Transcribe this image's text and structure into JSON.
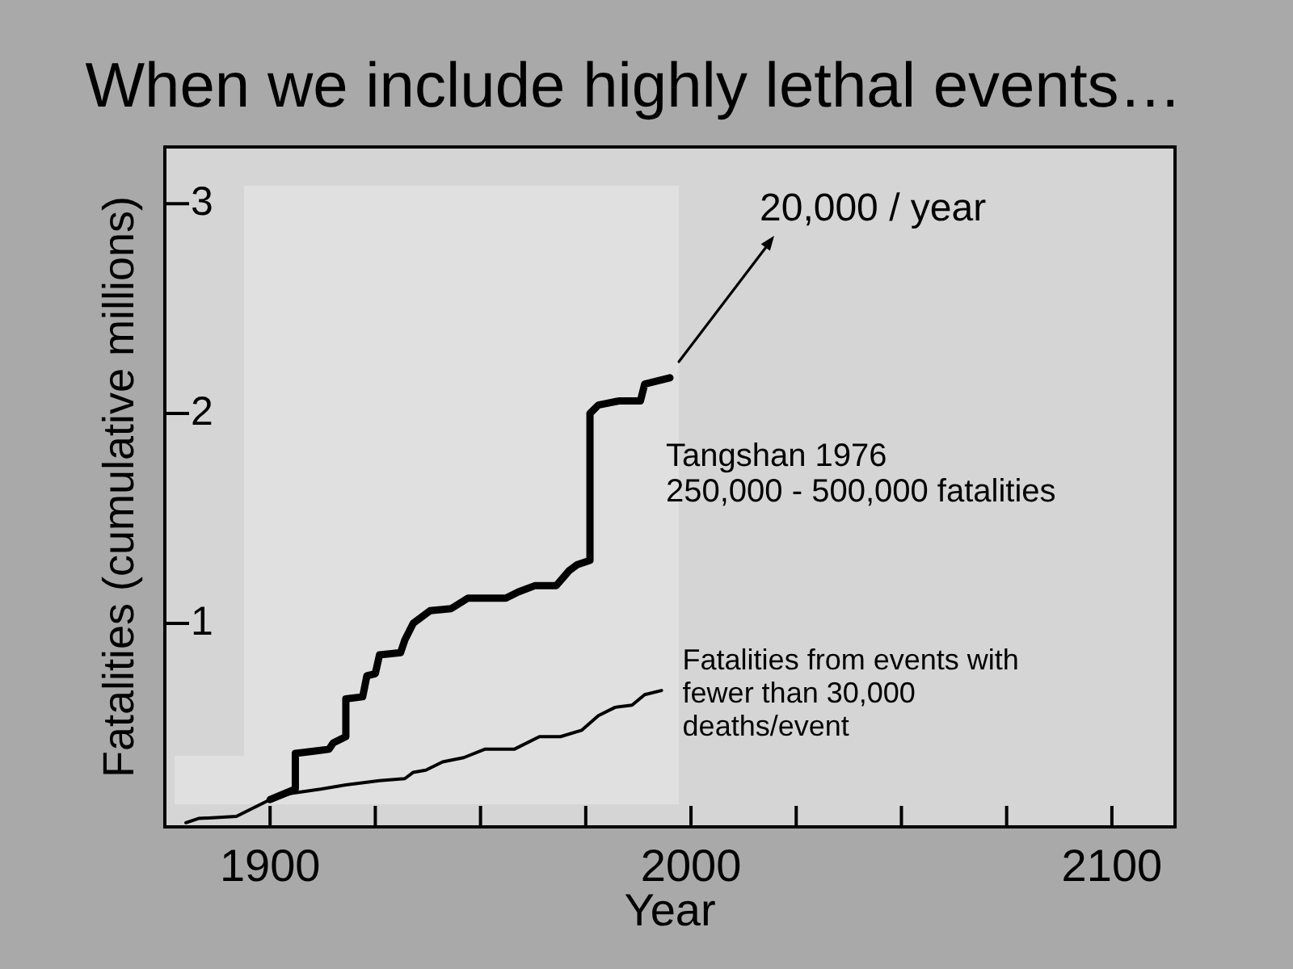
{
  "chart_data": {
    "type": "line",
    "title": "When we include highly lethal events…",
    "xlabel": "Year",
    "ylabel": "Fatalities (cumulative millions)",
    "xlim": [
      1875,
      2115
    ],
    "xticks": [
      1900,
      {
        "value": 1925,
        "label": null
      },
      {
        "value": 1950,
        "label": null
      },
      {
        "value": 1975,
        "label": null
      },
      2000,
      {
        "value": 2025,
        "label": null
      },
      {
        "value": 2050,
        "label": null
      },
      {
        "value": 2075,
        "label": null
      },
      2100
    ],
    "ylim": [
      0.03,
      3.27
    ],
    "yticks": [
      1,
      2,
      3
    ],
    "series": [
      {
        "color": "#000000",
        "x": [
          1900,
          1906,
          1906,
          1910,
          1914,
          1915,
          1918,
          1918,
          1922,
          1923,
          1925,
          1926,
          1931,
          1932,
          1934,
          1938,
          1943,
          1947,
          1956,
          1959,
          1963,
          1968,
          1971,
          1973,
          1976,
          1976,
          1978,
          1983,
          1988,
          1989,
          1995
        ],
        "values": [
          0.16,
          0.21,
          0.38,
          0.39,
          0.4,
          0.43,
          0.46,
          0.64,
          0.65,
          0.75,
          0.76,
          0.85,
          0.86,
          0.92,
          1.0,
          1.06,
          1.07,
          1.12,
          1.12,
          1.15,
          1.18,
          1.18,
          1.25,
          1.28,
          1.3,
          2.0,
          2.04,
          2.06,
          2.06,
          2.14,
          2.17
        ]
      },
      {
        "name": "Fatalities from events with fewer than 30,000 deaths/event",
        "color": "#000000",
        "x": [
          1880,
          1883,
          1892,
          1897,
          1900,
          1905,
          1912,
          1918,
          1926,
          1932,
          1934,
          1937,
          1941,
          1946,
          1951,
          1958,
          1964,
          1969,
          1974,
          1978,
          1982,
          1986,
          1989,
          1993
        ],
        "values": [
          0.05,
          0.07,
          0.08,
          0.13,
          0.16,
          0.19,
          0.21,
          0.23,
          0.25,
          0.26,
          0.29,
          0.3,
          0.34,
          0.36,
          0.4,
          0.4,
          0.46,
          0.46,
          0.49,
          0.56,
          0.6,
          0.61,
          0.66,
          0.68
        ]
      }
    ],
    "annotations": [
      "20,000 / year",
      "Tangshan 1976\n250,000 - 500,000 fatalities"
    ],
    "grid": false,
    "legend": false,
    "marker": "none",
    "line_style": "solid"
  }
}
